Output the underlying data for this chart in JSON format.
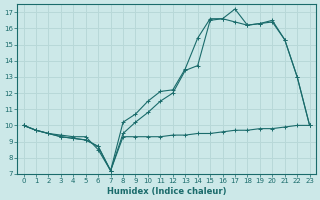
{
  "xlabel": "Humidex (Indice chaleur)",
  "bg_color": "#cce8e8",
  "grid_color": "#b8d8d8",
  "line_color": "#1a6b6b",
  "ylim": [
    7,
    17.5
  ],
  "xlim": [
    -0.5,
    23.5
  ],
  "yticks": [
    7,
    8,
    9,
    10,
    11,
    12,
    13,
    14,
    15,
    16,
    17
  ],
  "xticks": [
    0,
    1,
    2,
    3,
    4,
    5,
    6,
    7,
    8,
    9,
    10,
    11,
    12,
    13,
    14,
    15,
    16,
    17,
    18,
    19,
    20,
    21,
    22,
    23
  ],
  "line1_x": [
    0,
    1,
    2,
    3,
    4,
    5,
    6,
    7,
    8,
    9,
    10,
    11,
    12,
    13,
    14,
    15,
    16,
    17,
    18,
    19,
    20,
    21,
    22,
    23
  ],
  "line1_y": [
    10.0,
    9.7,
    9.5,
    9.4,
    9.3,
    9.3,
    8.5,
    7.2,
    10.2,
    10.7,
    11.5,
    12.1,
    12.2,
    13.5,
    15.4,
    16.6,
    16.6,
    17.2,
    16.2,
    16.3,
    16.5,
    15.3,
    13.0,
    10.0
  ],
  "line2_x": [
    0,
    1,
    2,
    3,
    4,
    5,
    6,
    7,
    8,
    9,
    10,
    11,
    12,
    13,
    14,
    15,
    16,
    17,
    18,
    19,
    20,
    21,
    22,
    23
  ],
  "line2_y": [
    10.0,
    9.7,
    9.5,
    9.3,
    9.2,
    9.1,
    8.7,
    7.2,
    9.5,
    10.2,
    10.8,
    11.5,
    12.0,
    13.4,
    13.7,
    16.5,
    16.6,
    16.4,
    16.2,
    16.3,
    16.4,
    15.3,
    13.0,
    10.0
  ],
  "line3_x": [
    0,
    1,
    2,
    3,
    4,
    5,
    6,
    7,
    8,
    9,
    10,
    11,
    12,
    13,
    14,
    15,
    16,
    17,
    18,
    19,
    20,
    21,
    22,
    23
  ],
  "line3_y": [
    10.0,
    9.7,
    9.5,
    9.3,
    9.2,
    9.1,
    8.7,
    7.2,
    9.3,
    9.3,
    9.3,
    9.3,
    9.4,
    9.4,
    9.5,
    9.5,
    9.6,
    9.7,
    9.7,
    9.8,
    9.8,
    9.9,
    10.0,
    10.0
  ],
  "ylabel_ticks": [
    "7",
    "8",
    "9",
    "10",
    "11",
    "12",
    "13",
    "14",
    "15",
    "16",
    "17"
  ]
}
